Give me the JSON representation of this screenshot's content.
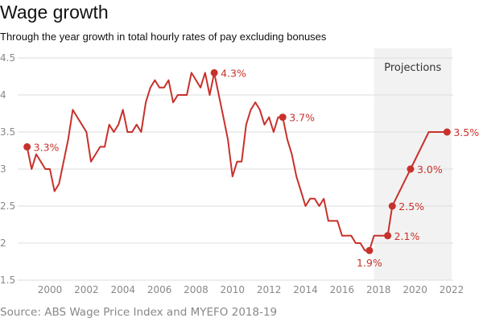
{
  "chart_data": {
    "type": "line",
    "title": "Wage growth",
    "subtitle": "Through the year growth in total hourly rates of pay excluding bonuses",
    "source": "Source: ABS Wage Price Index and MYEFO 2018-19",
    "xlabel": "",
    "ylabel": "",
    "xlim": [
      1998.5,
      2022
    ],
    "ylim": [
      1.5,
      4.5
    ],
    "x_ticks": [
      "2000",
      "2002",
      "2004",
      "2006",
      "2008",
      "2010",
      "2012",
      "2014",
      "2016",
      "2018",
      "2020",
      "2022"
    ],
    "y_ticks": [
      "1.5",
      "2",
      "2.5",
      "3",
      "3.5",
      "4",
      "4.5"
    ],
    "grid": true,
    "line_color": "#c8312b",
    "shaded_region": {
      "label": "Projections",
      "x_range": [
        2017.75,
        2022
      ],
      "color": "#f2f2f2"
    },
    "series": [
      {
        "x": [
          1998.75,
          1999,
          1999.25,
          1999.5,
          1999.75,
          2000,
          2000.25,
          2000.5,
          2000.75,
          2001,
          2001.25,
          2001.5,
          2001.75,
          2002,
          2002.25,
          2002.5,
          2002.75,
          2003,
          2003.25,
          2003.5,
          2003.75,
          2004,
          2004.25,
          2004.5,
          2004.75,
          2005,
          2005.25,
          2005.5,
          2005.75,
          2006,
          2006.25,
          2006.5,
          2006.75,
          2007,
          2007.25,
          2007.5,
          2007.75,
          2008,
          2008.25,
          2008.5,
          2008.75,
          2009,
          2009.25,
          2009.5,
          2009.75,
          2010,
          2010.25,
          2010.5,
          2010.75,
          2011,
          2011.25,
          2011.5,
          2011.75,
          2012,
          2012.25,
          2012.5,
          2012.75,
          2013,
          2013.25,
          2013.5,
          2013.75,
          2014,
          2014.25,
          2014.5,
          2014.75,
          2015,
          2015.25,
          2015.5,
          2015.75,
          2016,
          2016.25,
          2016.5,
          2016.75,
          2017,
          2017.25,
          2017.5,
          2017.75,
          2018,
          2018.25,
          2018.5,
          2018.75,
          2019.75,
          2020.75,
          2021.75
        ],
        "y": [
          3.3,
          3.0,
          3.2,
          3.1,
          3.0,
          3.0,
          2.7,
          2.8,
          3.1,
          3.4,
          3.8,
          3.7,
          3.6,
          3.5,
          3.1,
          3.2,
          3.3,
          3.3,
          3.6,
          3.5,
          3.6,
          3.8,
          3.5,
          3.5,
          3.6,
          3.5,
          3.9,
          4.1,
          4.2,
          4.1,
          4.1,
          4.2,
          3.9,
          4.0,
          4.0,
          4.0,
          4.3,
          4.2,
          4.1,
          4.3,
          4.0,
          4.3,
          4.0,
          3.7,
          3.4,
          2.9,
          3.1,
          3.1,
          3.6,
          3.8,
          3.9,
          3.8,
          3.6,
          3.7,
          3.5,
          3.7,
          3.7,
          3.4,
          3.2,
          2.9,
          2.7,
          2.5,
          2.6,
          2.6,
          2.5,
          2.6,
          2.3,
          2.3,
          2.3,
          2.1,
          2.1,
          2.1,
          2.0,
          2.0,
          1.9,
          1.9,
          2.1,
          2.1,
          2.1,
          2.1,
          2.5,
          3.0,
          3.5,
          3.5
        ]
      }
    ],
    "annotations": [
      {
        "x": 1998.75,
        "y": 3.3,
        "text": "3.3%",
        "pos": "right"
      },
      {
        "x": 2009,
        "y": 4.3,
        "text": "4.3%",
        "pos": "right"
      },
      {
        "x": 2012.75,
        "y": 3.7,
        "text": "3.7%",
        "pos": "right"
      },
      {
        "x": 2017.5,
        "y": 1.9,
        "text": "1.9%",
        "pos": "below"
      },
      {
        "x": 2018.5,
        "y": 2.1,
        "text": "2.1%",
        "pos": "right"
      },
      {
        "x": 2018.75,
        "y": 2.5,
        "text": "2.5%",
        "pos": "right"
      },
      {
        "x": 2019.75,
        "y": 3.0,
        "text": "3.0%",
        "pos": "right"
      },
      {
        "x": 2021.75,
        "y": 3.5,
        "text": "3.5%",
        "pos": "right"
      }
    ]
  }
}
